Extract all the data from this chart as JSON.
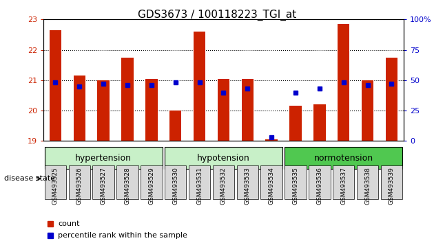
{
  "title": "GDS3673 / 100118223_TGI_at",
  "samples": [
    "GSM493525",
    "GSM493526",
    "GSM493527",
    "GSM493528",
    "GSM493529",
    "GSM493530",
    "GSM493531",
    "GSM493532",
    "GSM493533",
    "GSM493534",
    "GSM493535",
    "GSM493536",
    "GSM493537",
    "GSM493538",
    "GSM493539"
  ],
  "red_values": [
    22.65,
    21.15,
    21.0,
    21.75,
    21.05,
    20.0,
    22.6,
    21.05,
    21.05,
    19.05,
    20.15,
    20.2,
    22.85,
    21.0,
    21.75
  ],
  "blue_percentiles": [
    48,
    45,
    47,
    46,
    46,
    48,
    48,
    40,
    43,
    3,
    40,
    43,
    48,
    46,
    47
  ],
  "y_min": 19,
  "y_max": 23,
  "y_ticks": [
    19,
    20,
    21,
    22,
    23
  ],
  "right_y_ticks": [
    0,
    25,
    50,
    75,
    100
  ],
  "right_y_labels": [
    "0",
    "25",
    "50",
    "75",
    "100%"
  ],
  "groups": [
    {
      "label": "hypertension",
      "start": 0,
      "end": 4,
      "color": "#c8f0c8"
    },
    {
      "label": "hypotension",
      "start": 5,
      "end": 9,
      "color": "#c8f0c8"
    },
    {
      "label": "normotension",
      "start": 10,
      "end": 14,
      "color": "#50c850"
    }
  ],
  "bar_color": "#cc2200",
  "dot_color": "#0000cc",
  "bar_width": 0.5,
  "background_color": "#ffffff",
  "plot_bg_color": "#ffffff",
  "grid_color": "#000000",
  "tick_color_left": "#cc2200",
  "tick_color_right": "#0000cc",
  "disease_state_label": "disease state",
  "legend_count_label": "count",
  "legend_pct_label": "percentile rank within the sample"
}
